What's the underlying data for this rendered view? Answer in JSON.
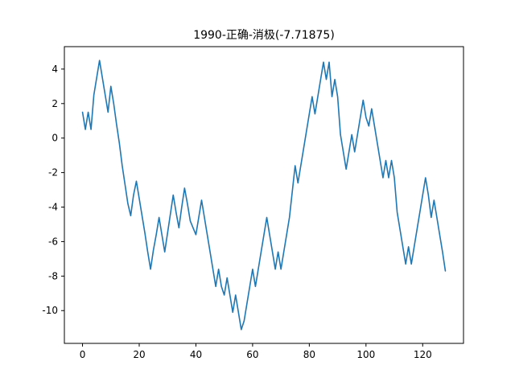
{
  "chart_data": {
    "type": "line",
    "title": "1990-正确-消极(-7.71875)",
    "xlabel": "",
    "ylabel": "",
    "xlim": [
      -6.4,
      134.4
    ],
    "ylim": [
      -11.9,
      5.3
    ],
    "xticks": [
      0,
      20,
      40,
      60,
      80,
      100,
      120
    ],
    "yticks": [
      -10,
      -8,
      -6,
      -4,
      -2,
      0,
      2,
      4
    ],
    "grid": false,
    "legend": "none",
    "line_color": "#1f77b4",
    "series": [
      {
        "values": [
          1.5,
          0.5,
          1.5,
          0.5,
          2.5,
          3.5,
          4.5,
          3.5,
          2.5,
          1.5,
          3.0,
          2.0,
          0.8,
          -0.3,
          -1.6,
          -2.7,
          -3.8,
          -4.5,
          -3.3,
          -2.5,
          -3.5,
          -4.5,
          -5.5,
          -6.6,
          -7.6,
          -6.5,
          -5.6,
          -4.6,
          -5.6,
          -6.6,
          -5.5,
          -4.4,
          -3.3,
          -4.3,
          -5.2,
          -4.0,
          -2.9,
          -3.8,
          -4.8,
          -5.2,
          -5.6,
          -4.6,
          -3.6,
          -4.6,
          -5.6,
          -6.6,
          -7.6,
          -8.6,
          -7.6,
          -8.6,
          -9.1,
          -8.1,
          -9.1,
          -10.1,
          -9.1,
          -10.1,
          -11.1,
          -10.6,
          -9.6,
          -8.6,
          -7.6,
          -8.6,
          -7.6,
          -6.6,
          -5.6,
          -4.6,
          -5.6,
          -6.6,
          -7.6,
          -6.6,
          -7.6,
          -6.6,
          -5.6,
          -4.6,
          -3.1,
          -1.6,
          -2.6,
          -1.6,
          -0.6,
          0.4,
          1.4,
          2.4,
          1.4,
          2.4,
          3.4,
          4.4,
          3.4,
          4.4,
          2.4,
          3.4,
          2.4,
          0.2,
          -0.8,
          -1.8,
          -0.8,
          0.2,
          -0.8,
          0.2,
          1.2,
          2.2,
          1.2,
          0.7,
          1.7,
          0.7,
          -0.3,
          -1.3,
          -2.3,
          -1.3,
          -2.3,
          -1.3,
          -2.3,
          -4.3,
          -5.3,
          -6.3,
          -7.3,
          -6.3,
          -7.3,
          -6.3,
          -5.3,
          -4.3,
          -3.3,
          -2.3,
          -3.3,
          -4.6,
          -3.6,
          -4.6,
          -5.6,
          -6.6,
          -7.7
        ]
      }
    ]
  }
}
